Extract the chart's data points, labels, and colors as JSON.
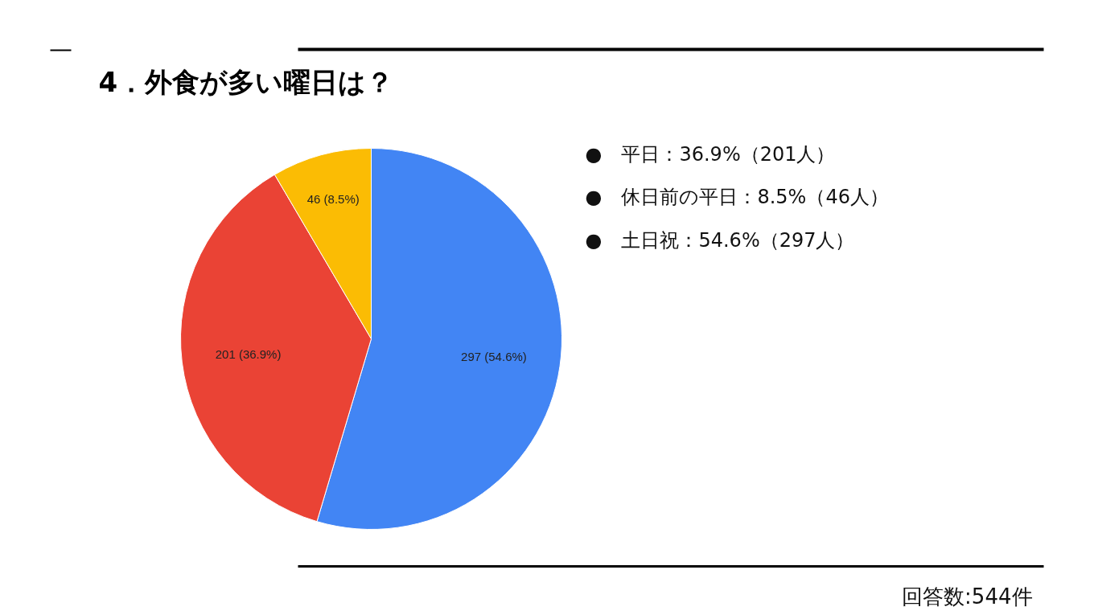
{
  "chart_data": {
    "type": "pie",
    "title": "4．外食が多い曜日は？",
    "categories": [
      null,
      null,
      null
    ],
    "values": [
      297,
      201,
      46
    ],
    "colors": [
      "#4285f4",
      "#ea4335",
      "#fbbc04"
    ],
    "value_labels": [
      "297 (54.6%)",
      "201 (36.9%)",
      "46 (8.5%)"
    ],
    "annotations": [
      "●　平日：36.9%（201人）",
      "●　休日前の平日：8.5%（46人）",
      "●　土日祝：54.6%（297人）",
      "回答数:544件"
    ]
  }
}
